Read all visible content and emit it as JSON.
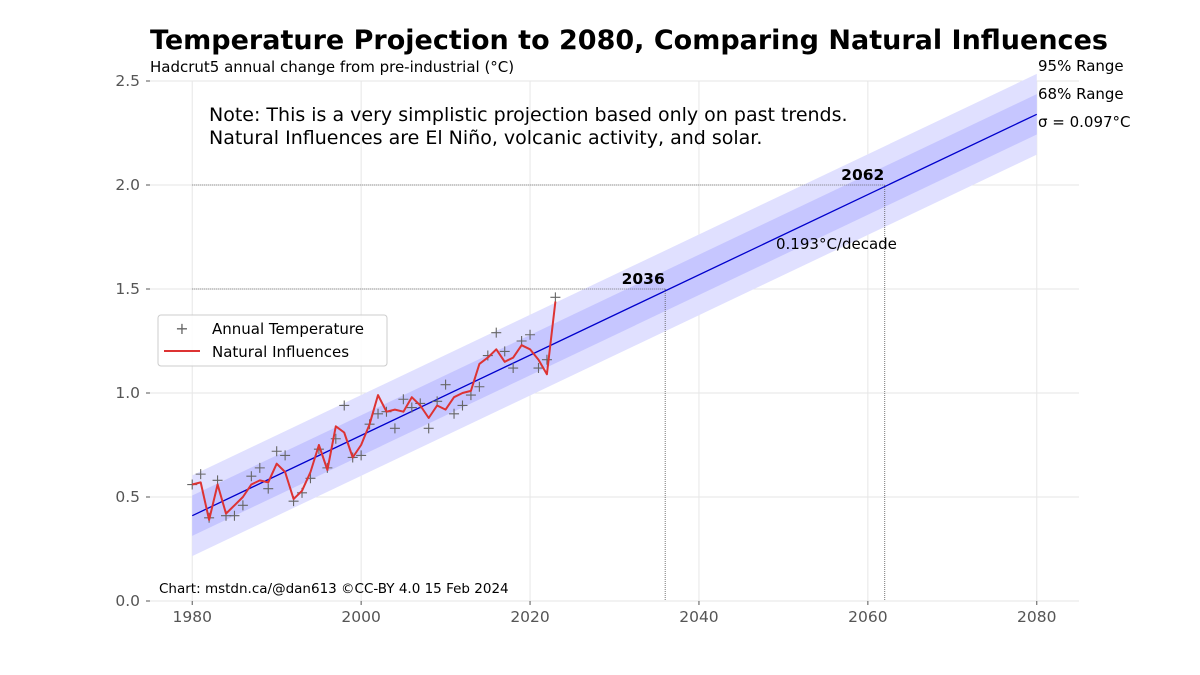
{
  "chart_data": {
    "type": "line",
    "title": "Temperature Projection to 2080, Comparing Natural Influences",
    "subtitle": "Hadcrut5 annual change from pre-industrial (°C)",
    "xlabel": "",
    "ylabel": "",
    "xlim": [
      1975,
      2085
    ],
    "ylim": [
      0.0,
      2.5
    ],
    "x_ticks": [
      1980,
      2000,
      2020,
      2040,
      2060,
      2080
    ],
    "y_ticks": [
      "0.0",
      "0.5",
      "1.0",
      "1.5",
      "2.0",
      "2.5"
    ],
    "grid": true,
    "note_lines": [
      "Note: This is a very simplistic projection based only on past trends.",
      "Natural Influences are El Niño, volcanic activity, and solar."
    ],
    "credit": "Chart: mstdn.ca/@dan613 ©CC-BY 4.0  15 Feb 2024",
    "legend": {
      "placement": "center-left",
      "entries": [
        "Annual Temperature",
        "Natural Influences"
      ]
    },
    "band_labels": [
      "95% Range",
      "68% Range",
      "σ = 0.097°C"
    ],
    "trend": {
      "label": "0.193°C/decade",
      "x": [
        1980,
        2080
      ],
      "y": [
        0.41,
        2.34
      ],
      "sigma": 0.097,
      "color": "#0000cc"
    },
    "thresholds": [
      {
        "level": 1.5,
        "year": 2036,
        "label": "2036"
      },
      {
        "level": 2.0,
        "year": 2062,
        "label": "2062"
      }
    ],
    "series": [
      {
        "name": "Annual Temperature",
        "marker": "+",
        "color": "#666666",
        "x": [
          1980,
          1981,
          1982,
          1983,
          1984,
          1985,
          1986,
          1987,
          1988,
          1989,
          1990,
          1991,
          1992,
          1993,
          1994,
          1995,
          1996,
          1997,
          1998,
          1999,
          2000,
          2001,
          2002,
          2003,
          2004,
          2005,
          2006,
          2007,
          2008,
          2009,
          2010,
          2011,
          2012,
          2013,
          2014,
          2015,
          2016,
          2017,
          2018,
          2019,
          2020,
          2021,
          2022,
          2023
        ],
        "y": [
          0.56,
          0.61,
          0.4,
          0.58,
          0.41,
          0.41,
          0.46,
          0.6,
          0.64,
          0.54,
          0.72,
          0.7,
          0.48,
          0.52,
          0.59,
          0.73,
          0.64,
          0.78,
          0.94,
          0.69,
          0.7,
          0.85,
          0.9,
          0.91,
          0.83,
          0.97,
          0.93,
          0.95,
          0.83,
          0.96,
          1.04,
          0.9,
          0.94,
          0.99,
          1.03,
          1.18,
          1.29,
          1.2,
          1.12,
          1.25,
          1.28,
          1.12,
          1.16,
          1.46
        ]
      },
      {
        "name": "Natural Influences",
        "color": "#dd3333",
        "x": [
          1980,
          1981,
          1982,
          1983,
          1984,
          1985,
          1986,
          1987,
          1988,
          1989,
          1990,
          1991,
          1992,
          1993,
          1994,
          1995,
          1996,
          1997,
          1998,
          1999,
          2000,
          2001,
          2002,
          2003,
          2004,
          2005,
          2006,
          2007,
          2008,
          2009,
          2010,
          2011,
          2012,
          2013,
          2014,
          2015,
          2016,
          2017,
          2018,
          2019,
          2020,
          2021,
          2022,
          2023
        ],
        "y": [
          0.56,
          0.57,
          0.39,
          0.56,
          0.42,
          0.46,
          0.5,
          0.56,
          0.58,
          0.57,
          0.66,
          0.62,
          0.49,
          0.53,
          0.62,
          0.75,
          0.63,
          0.84,
          0.81,
          0.69,
          0.75,
          0.85,
          0.99,
          0.91,
          0.92,
          0.91,
          0.98,
          0.94,
          0.88,
          0.94,
          0.92,
          0.98,
          1.0,
          1.01,
          1.14,
          1.17,
          1.21,
          1.15,
          1.17,
          1.23,
          1.21,
          1.16,
          1.09,
          1.44
        ]
      }
    ],
    "colors": {
      "band95": "#e0e0ff",
      "band68": "#c6c6ff",
      "grid": "#e6e6e6",
      "threshold_line": "#555555"
    }
  }
}
